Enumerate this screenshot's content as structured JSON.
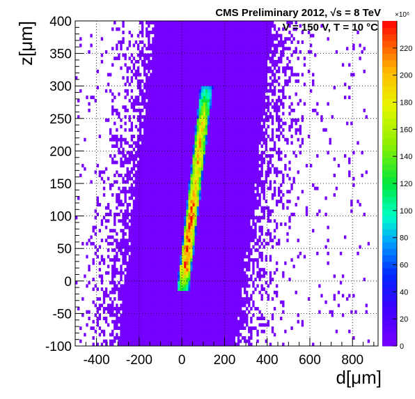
{
  "chart_data": {
    "type": "heatmap",
    "title_lines": [
      "CMS Preliminary 2012, √s = 8 TeV",
      "V = 150 V, T = 10 °C"
    ],
    "xlabel": "d[μm]",
    "ylabel": "z[μm]",
    "xlim": [
      -500,
      920
    ],
    "ylim": [
      -100,
      400
    ],
    "xticks": [
      -400,
      -200,
      0,
      200,
      400,
      600,
      800
    ],
    "yticks": [
      -100,
      -50,
      0,
      50,
      100,
      150,
      200,
      250,
      300,
      350,
      400
    ],
    "grid": true,
    "colorbar": {
      "range": [
        0,
        240
      ],
      "multiplier_label": "×10⁶",
      "ticks": [
        0,
        20,
        40,
        60,
        80,
        100,
        120,
        140,
        160,
        180,
        200,
        220
      ]
    },
    "bins": {
      "dx": 10,
      "dz": 5
    },
    "band": {
      "description": "dense track band",
      "z_range": [
        -15,
        300
      ],
      "center_at_z0": 10,
      "slope_dz_per_dd": 2.8,
      "half_width": 30,
      "peak_value": 225,
      "peak_z": [
        20,
        130
      ]
    },
    "background": {
      "level": 1,
      "halo_half_width_at_center": 270,
      "sparse_edge_width": 200
    }
  }
}
